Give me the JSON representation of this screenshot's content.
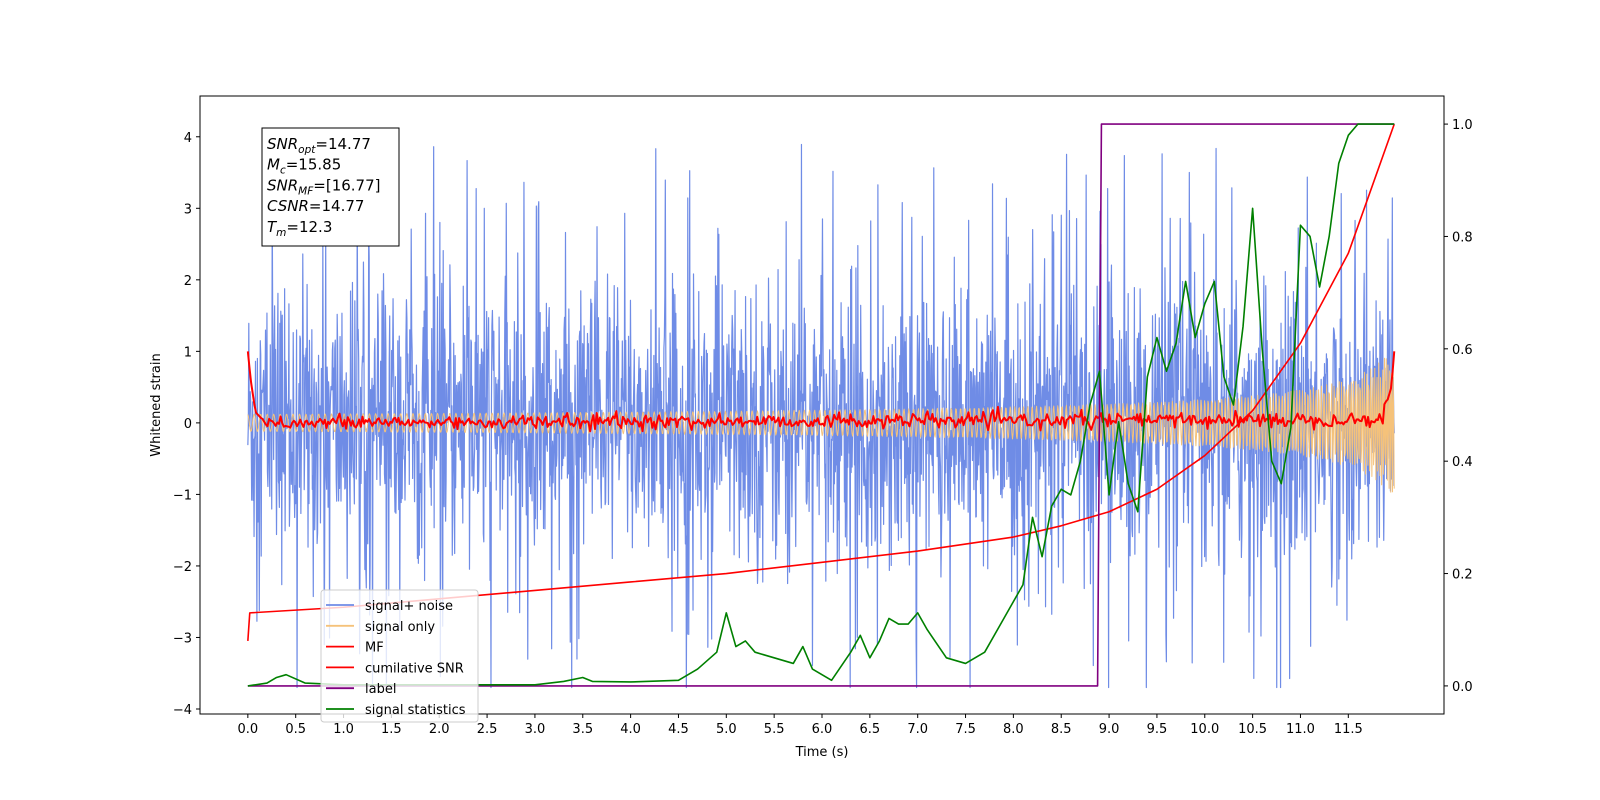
{
  "chart_data": {
    "type": "line",
    "xlabel": "Time (s)",
    "ylabel": "Whitened strain",
    "xlim": [
      -0.5,
      12.5
    ],
    "ylim_left": [
      -4.07,
      4.57
    ],
    "ylim_right": [
      -0.05,
      1.05
    ],
    "x_ticks": [
      0.0,
      0.5,
      1.0,
      1.5,
      2.0,
      2.5,
      3.0,
      3.5,
      4.0,
      4.5,
      5.0,
      5.5,
      6.0,
      6.5,
      7.0,
      7.5,
      8.0,
      8.5,
      9.0,
      9.5,
      10.0,
      10.5,
      11.0,
      11.5
    ],
    "x_tick_labels": [
      "0.0",
      "0.5",
      "1.0",
      "1.5",
      "2.0",
      "2.5",
      "3.0",
      "3.5",
      "4.0",
      "4.5",
      "5.0",
      "5.5",
      "6.0",
      "6.5",
      "7.0",
      "7.5",
      "8.0",
      "8.5",
      "9.0",
      "9.5",
      "10.0",
      "10.5",
      "11.0",
      "11.5"
    ],
    "y_left_ticks": [
      -4,
      -3,
      -2,
      -1,
      0,
      1,
      2,
      3,
      4
    ],
    "y_left_tick_labels": [
      "−4",
      "−3",
      "−2",
      "−1",
      "0",
      "1",
      "2",
      "3",
      "4"
    ],
    "y_right_ticks": [
      0.0,
      0.2,
      0.4,
      0.6,
      0.8,
      1.0
    ],
    "y_right_tick_labels": [
      "0.0",
      "0.2",
      "0.4",
      "0.6",
      "0.8",
      "1.0"
    ],
    "legend_position": "lower-left",
    "grid": false,
    "annotation": {
      "lines": [
        {
          "base": "SNR",
          "sub": "opt",
          "rest": "=14.77"
        },
        {
          "base": "M",
          "sub": "c",
          "rest": "=15.85"
        },
        {
          "base": "SNR",
          "sub": "MF",
          "rest": "=[16.77]"
        },
        {
          "base": "CSNR",
          "sub": "",
          "rest": "=14.77"
        },
        {
          "base": "T",
          "sub": "m",
          "rest": "=12.3"
        }
      ]
    },
    "series": [
      {
        "name": "signal+ noise",
        "axis": "left",
        "color": "#6f8ce6",
        "kind": "noise",
        "x_range": [
          0.0,
          11.98
        ],
        "typical_range": [
          -2.5,
          2.5
        ],
        "peak_range": [
          -3.7,
          4.2
        ]
      },
      {
        "name": "signal only",
        "axis": "left",
        "color": "#f5c27a",
        "kind": "chirp",
        "x_range": [
          0.0,
          11.98
        ],
        "end_amplitude": 1.0
      },
      {
        "name": "MF",
        "axis": "left",
        "color": "#ff0000",
        "kind": "mf",
        "x": [
          0.0,
          0.03,
          0.08,
          0.15,
          0.3,
          11.85,
          11.95,
          11.98
        ],
        "y": [
          1.0,
          0.6,
          0.15,
          0.05,
          0.0,
          0.05,
          0.5,
          1.0
        ]
      },
      {
        "name": "cumilative SNR",
        "axis": "right",
        "color": "#ff0000",
        "x": [
          0.0,
          0.02,
          1.0,
          2.0,
          3.0,
          4.0,
          5.0,
          6.0,
          7.0,
          8.0,
          8.5,
          9.0,
          9.5,
          10.0,
          10.5,
          11.0,
          11.5,
          11.98
        ],
        "y": [
          0.08,
          0.13,
          0.14,
          0.155,
          0.17,
          0.185,
          0.2,
          0.22,
          0.24,
          0.265,
          0.285,
          0.31,
          0.35,
          0.41,
          0.49,
          0.61,
          0.77,
          1.0
        ]
      },
      {
        "name": "label",
        "axis": "right",
        "color": "#800080",
        "x": [
          0.0,
          8.88,
          8.92,
          11.98
        ],
        "y": [
          0.0,
          0.0,
          1.0,
          1.0
        ]
      },
      {
        "name": "signal statistics",
        "axis": "right",
        "color": "#008000",
        "x": [
          0.0,
          0.2,
          0.3,
          0.4,
          0.6,
          1.0,
          2.0,
          3.0,
          3.3,
          3.5,
          3.6,
          4.0,
          4.5,
          4.7,
          4.9,
          5.0,
          5.1,
          5.2,
          5.3,
          5.5,
          5.7,
          5.8,
          5.9,
          6.0,
          6.1,
          6.3,
          6.4,
          6.5,
          6.6,
          6.7,
          6.8,
          6.9,
          7.0,
          7.1,
          7.3,
          7.5,
          7.7,
          7.9,
          8.1,
          8.2,
          8.3,
          8.4,
          8.5,
          8.6,
          8.7,
          8.8,
          8.9,
          9.0,
          9.1,
          9.2,
          9.3,
          9.4,
          9.5,
          9.6,
          9.7,
          9.8,
          9.9,
          10.0,
          10.1,
          10.2,
          10.3,
          10.4,
          10.5,
          10.6,
          10.7,
          10.8,
          10.9,
          11.0,
          11.1,
          11.2,
          11.3,
          11.4,
          11.5,
          11.6,
          11.7,
          11.98
        ],
        "y": [
          0.0,
          0.005,
          0.015,
          0.02,
          0.005,
          0.002,
          0.002,
          0.002,
          0.008,
          0.015,
          0.008,
          0.007,
          0.01,
          0.03,
          0.06,
          0.13,
          0.07,
          0.08,
          0.06,
          0.05,
          0.04,
          0.07,
          0.03,
          0.02,
          0.01,
          0.06,
          0.09,
          0.05,
          0.08,
          0.12,
          0.11,
          0.11,
          0.13,
          0.1,
          0.05,
          0.04,
          0.06,
          0.12,
          0.18,
          0.3,
          0.23,
          0.32,
          0.35,
          0.34,
          0.4,
          0.5,
          0.56,
          0.34,
          0.47,
          0.36,
          0.31,
          0.55,
          0.62,
          0.56,
          0.61,
          0.72,
          0.62,
          0.68,
          0.72,
          0.55,
          0.5,
          0.64,
          0.85,
          0.6,
          0.4,
          0.36,
          0.46,
          0.82,
          0.8,
          0.71,
          0.8,
          0.93,
          0.98,
          1.0,
          1.0,
          1.0
        ]
      }
    ]
  }
}
